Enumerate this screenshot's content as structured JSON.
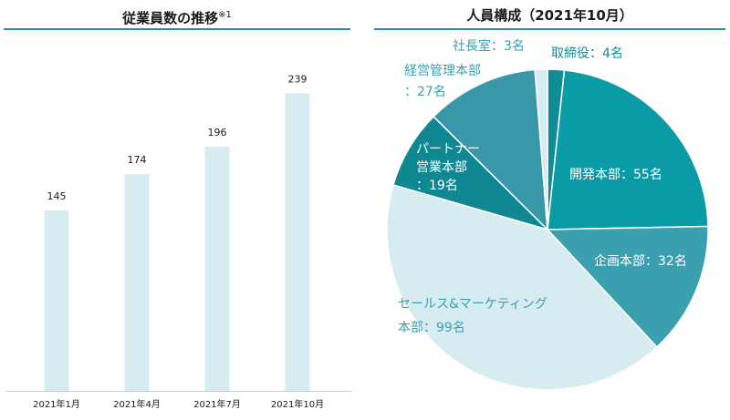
{
  "titles": {
    "bar": "従業員数の推移",
    "bar_note": "※1",
    "pie": "人員構成（2021年10月）"
  },
  "colors": {
    "rule": "#2c8b97",
    "bar": "#d6ecf0",
    "pie": {
      "dev": "#0b9ba6",
      "plan": "#3a9fae",
      "sales": "#d6ecf0",
      "partner": "#0f8892",
      "mgmt": "#3998a8",
      "ceo": "#d6ecf0",
      "trade": "#0f8d96"
    }
  },
  "chart_data": [
    {
      "type": "bar",
      "title": "従業員数の推移※1",
      "categories": [
        "2021年1月",
        "2021年4月",
        "2021年7月",
        "2021年10月"
      ],
      "values": [
        145,
        174,
        196,
        239
      ],
      "value_labels": [
        "145",
        "174",
        "196",
        "239"
      ],
      "ylim": [
        0,
        270
      ],
      "grid": false,
      "legend": "none"
    },
    {
      "type": "pie",
      "title": "人員構成（2021年10月）",
      "slices": [
        {
          "key": "trade",
          "value": 4,
          "lines": [
            "取締役：4名"
          ]
        },
        {
          "key": "dev",
          "value": 55,
          "lines": [
            "開発本部：55名"
          ]
        },
        {
          "key": "plan",
          "value": 32,
          "lines": [
            "企画本部：32名"
          ]
        },
        {
          "key": "sales",
          "value": 99,
          "lines": [
            "セールス&マーケティング",
            "本部：99名"
          ]
        },
        {
          "key": "partner",
          "value": 19,
          "lines": [
            "パートナー",
            "営業本部",
            "：19名"
          ]
        },
        {
          "key": "mgmt",
          "value": 27,
          "lines": [
            "経営管理本部",
            "：27名"
          ]
        },
        {
          "key": "ceo",
          "value": 3,
          "lines": [
            "社長室：3名"
          ]
        }
      ],
      "legend": "none"
    }
  ]
}
